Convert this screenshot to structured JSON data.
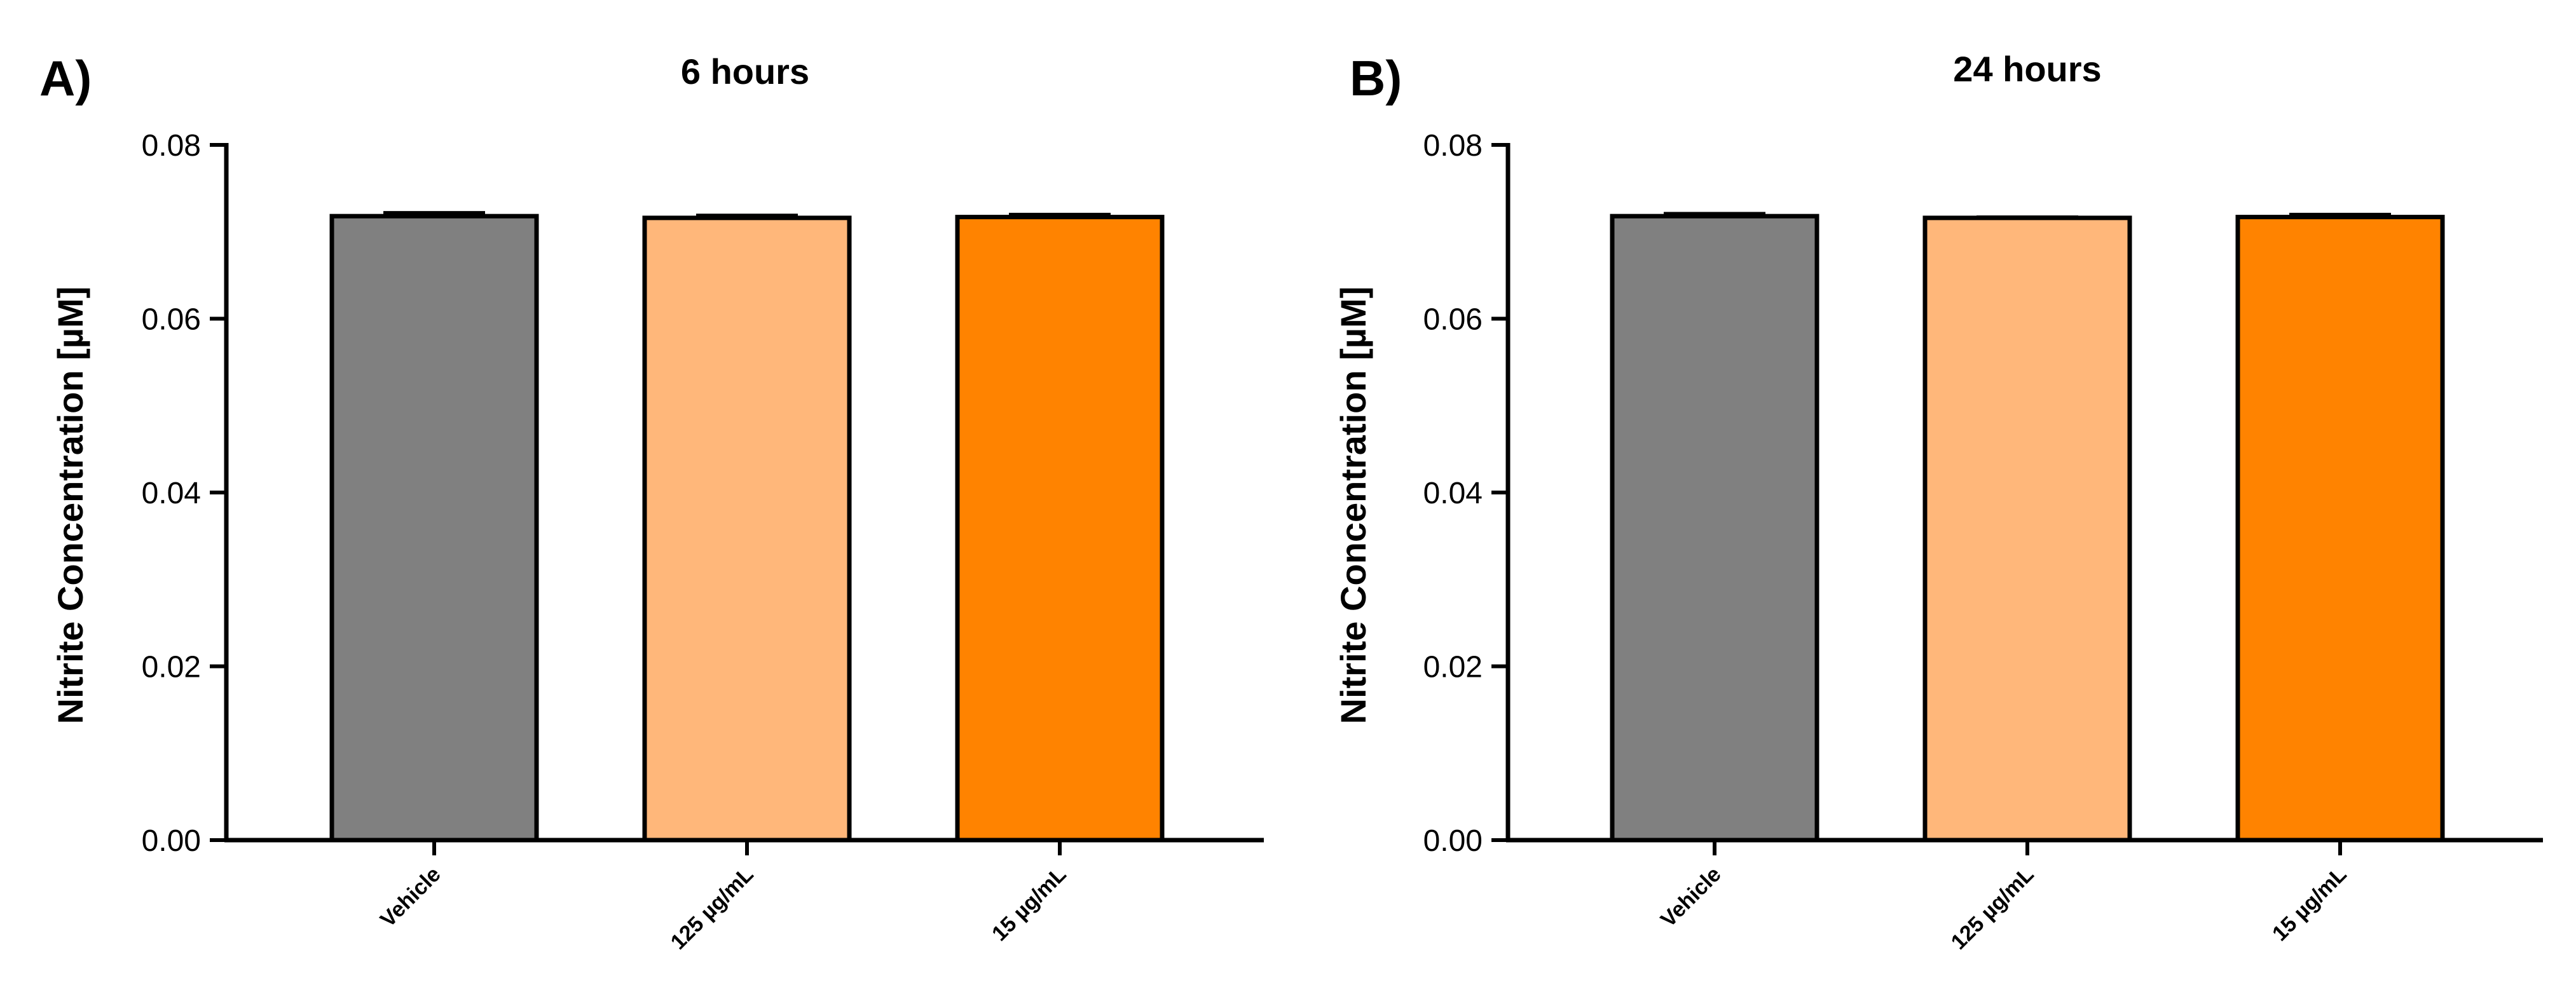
{
  "chart_data": [
    {
      "type": "bar",
      "panel": "A)",
      "title": "6 hours",
      "xlabel": "",
      "ylabel": "Nitrite Concentration [µM]",
      "ylim": [
        0,
        0.08
      ],
      "yticks": [
        "0.00",
        "0.02",
        "0.04",
        "0.06",
        "0.08"
      ],
      "categories": [
        "Vehicle",
        "125 µg/mL",
        "15 µg/mL"
      ],
      "values": [
        0.0718,
        0.0716,
        0.0717
      ],
      "errors": [
        0.0004,
        0.0003,
        0.0003
      ],
      "colors": [
        "#808080",
        "#ffb77a",
        "#ff8300"
      ]
    },
    {
      "type": "bar",
      "panel": "B)",
      "title": "24 hours",
      "xlabel": "",
      "ylabel": "Nitrite Concentration [µM]",
      "ylim": [
        0,
        0.08
      ],
      "yticks": [
        "0.00",
        "0.02",
        "0.04",
        "0.06",
        "0.08"
      ],
      "categories": [
        "Vehicle",
        "125 µg/mL",
        "15 µg/mL"
      ],
      "values": [
        0.0718,
        0.0716,
        0.0717
      ],
      "errors": [
        0.0003,
        0.0001,
        0.0003
      ],
      "colors": [
        "#808080",
        "#ffb77a",
        "#ff8300"
      ]
    }
  ]
}
